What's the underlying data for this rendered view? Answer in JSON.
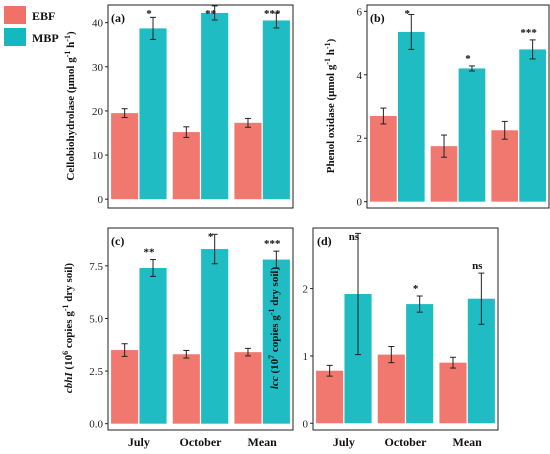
{
  "legend": {
    "items": [
      {
        "name": "EBF",
        "color": "#F07166"
      },
      {
        "name": "MBP",
        "color": "#14B8C0"
      }
    ]
  },
  "chart_data": [
    {
      "type": "bar",
      "panel_label": "(a)",
      "categories": [
        "July",
        "October",
        "Mean"
      ],
      "ylabel": "Cellobiohydrolase (μmol g⁻¹ h⁻¹)",
      "ylim": [
        -2,
        44
      ],
      "yticks": [
        0,
        10,
        20,
        30,
        40
      ],
      "series": [
        {
          "name": "EBF",
          "values": [
            19.5,
            15.2,
            17.3
          ],
          "errors": [
            1.0,
            1.2,
            1.0
          ]
        },
        {
          "name": "MBP",
          "values": [
            38.7,
            42.2,
            40.5
          ],
          "errors": [
            2.5,
            1.6,
            1.7
          ]
        }
      ],
      "significance": [
        "*",
        "**",
        "***"
      ]
    },
    {
      "type": "bar",
      "panel_label": "(b)",
      "categories": [
        "July",
        "October",
        "Mean"
      ],
      "ylabel": "Phenol oxidase (μmol g⁻¹ h⁻¹)",
      "ylim": [
        -0.2,
        6.2
      ],
      "yticks": [
        0,
        2,
        4,
        6
      ],
      "series": [
        {
          "name": "EBF",
          "values": [
            2.7,
            1.75,
            2.25
          ],
          "errors": [
            0.25,
            0.35,
            0.28
          ]
        },
        {
          "name": "MBP",
          "values": [
            5.35,
            4.2,
            4.8
          ],
          "errors": [
            0.55,
            0.08,
            0.3
          ]
        }
      ],
      "significance": [
        "*",
        "*",
        "***"
      ]
    },
    {
      "type": "bar",
      "panel_label": "(c)",
      "categories": [
        "July",
        "October",
        "Mean"
      ],
      "ylabel": "cbhI (10⁶ copies g⁻¹ dry soil)",
      "ylim": [
        -0.3,
        9.3
      ],
      "yticks": [
        0.0,
        2.5,
        5.0,
        7.5
      ],
      "ytick_labels": [
        "0.0",
        "2.5",
        "5.0",
        "7.5"
      ],
      "series": [
        {
          "name": "EBF",
          "values": [
            3.5,
            3.3,
            3.4
          ],
          "errors": [
            0.3,
            0.18,
            0.18
          ]
        },
        {
          "name": "MBP",
          "values": [
            7.4,
            8.3,
            7.8
          ],
          "errors": [
            0.4,
            0.7,
            0.4
          ]
        }
      ],
      "significance": [
        "**",
        "*",
        "***"
      ]
    },
    {
      "type": "bar",
      "panel_label": "(d)",
      "categories": [
        "July",
        "October",
        "Mean"
      ],
      "ylabel": "lcc (10⁷ copies g⁻¹ dry soil)",
      "ylim": [
        -0.1,
        2.9
      ],
      "yticks": [
        0,
        1,
        2
      ],
      "series": [
        {
          "name": "EBF",
          "values": [
            0.78,
            1.02,
            0.9
          ],
          "errors": [
            0.08,
            0.12,
            0.08
          ]
        },
        {
          "name": "MBP",
          "values": [
            1.92,
            1.77,
            1.85
          ],
          "errors": [
            0.9,
            0.12,
            0.38
          ]
        }
      ],
      "significance": [
        "ns",
        "*",
        "ns"
      ]
    }
  ]
}
